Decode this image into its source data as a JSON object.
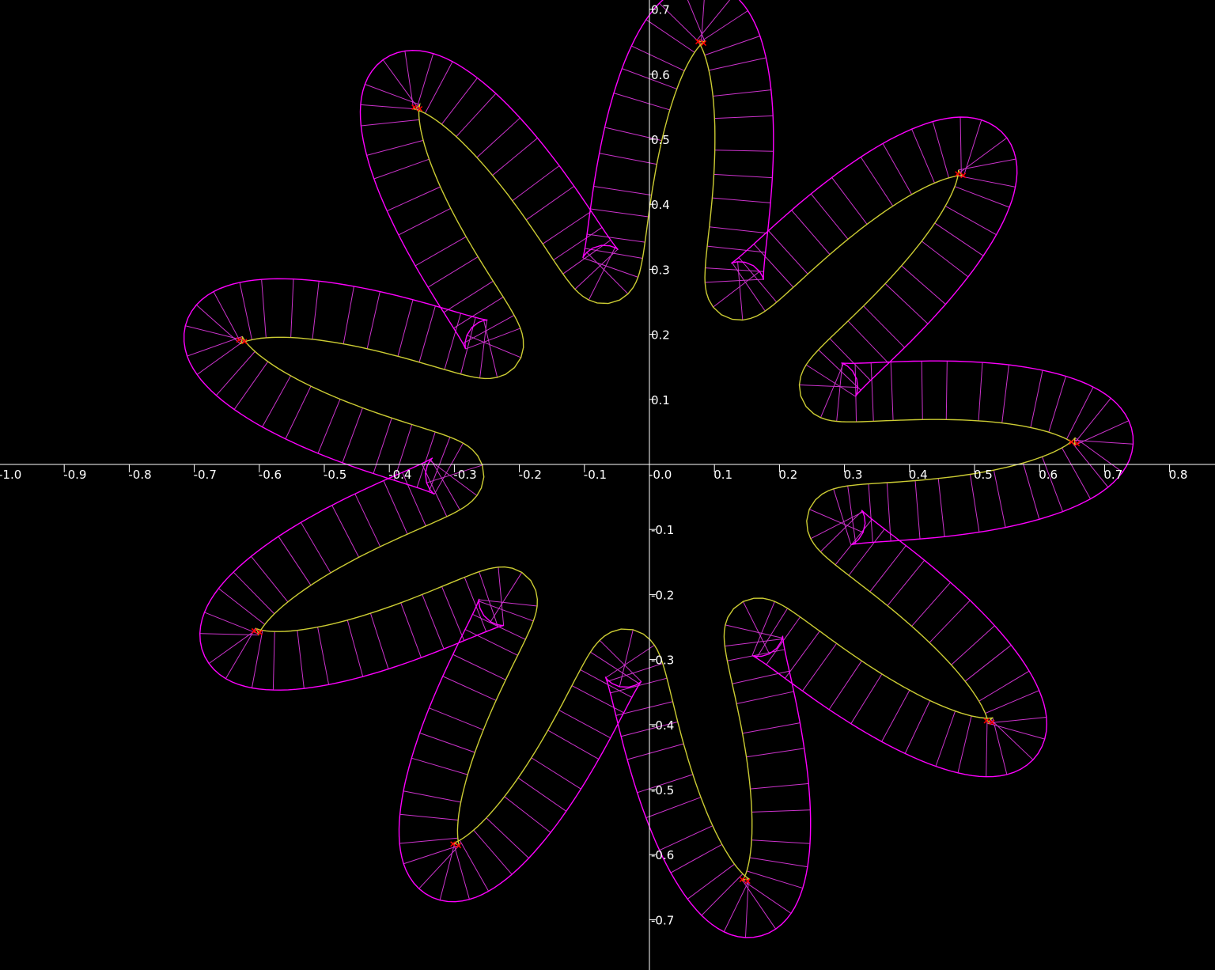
{
  "chart_data": {
    "type": "diagram",
    "description_none": "",
    "x_ticks": [
      "-1.0",
      "-0.9",
      "-0.8",
      "-0.7",
      "-0.6",
      "-0.5",
      "-0.4",
      "-0.3",
      "-0.2",
      "-0.1",
      "-0.0",
      "0.1",
      "0.2",
      "0.3",
      "0.4",
      "0.5",
      "0.6",
      "0.7",
      "0.8"
    ],
    "y_ticks": [
      "0.7",
      "0.6",
      "0.5",
      "0.4",
      "0.3",
      "0.2",
      "0.1",
      "-0.1",
      "-0.2",
      "-0.3",
      "-0.4",
      "-0.5",
      "-0.6",
      "-0.7"
    ],
    "xlim": [
      -1.0,
      0.87
    ],
    "ylim": [
      -0.78,
      0.71
    ],
    "colors": {
      "background": "#000000",
      "axes": "#ffffff",
      "outer_boundary": "#ff00ff",
      "inner_boundary": "#cccc33",
      "rungs": "#cc33cc",
      "markers": "#ff0000"
    },
    "shape": {
      "lobes": 9,
      "base_radius": 0.5,
      "amplitude": 0.2,
      "band_width": 0.09
    }
  }
}
